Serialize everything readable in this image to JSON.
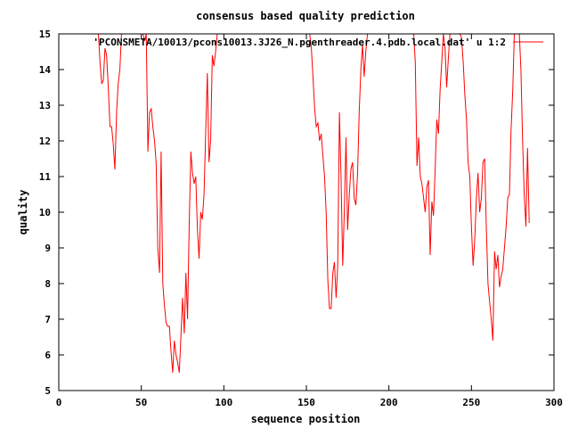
{
  "chart_data": {
    "type": "line",
    "title": "consensus based quality prediction",
    "xlabel": "sequence position",
    "ylabel": "quality",
    "xlim": [
      0,
      300
    ],
    "ylim": [
      5,
      15
    ],
    "xticks": [
      0,
      50,
      100,
      150,
      200,
      250,
      300
    ],
    "yticks": [
      5,
      6,
      7,
      8,
      9,
      10,
      11,
      12,
      13,
      14,
      15
    ],
    "grid": false,
    "legend_position": "top-right",
    "colors": {
      "series": "#ff0000",
      "axes": "#000000",
      "background": "#ffffff"
    },
    "series": [
      {
        "name": "'PCONSMETA/10013/pcons10013.3J26_N.pgenthreader.4.pdb.local.dat' u 1:2",
        "x": [
          24,
          25,
          26,
          27,
          28,
          29,
          30,
          31,
          32,
          33,
          34,
          35,
          36,
          37,
          38,
          39,
          40,
          41,
          42,
          43,
          44,
          45,
          46,
          47,
          48,
          49,
          50,
          51,
          52,
          53,
          54,
          55,
          56,
          57,
          58,
          59,
          60,
          61,
          62,
          63,
          64,
          65,
          66,
          67,
          68,
          69,
          70,
          71,
          72,
          73,
          74,
          75,
          76,
          77,
          78,
          79,
          80,
          81,
          82,
          83,
          84,
          85,
          86,
          87,
          88,
          89,
          90,
          91,
          92,
          93,
          94,
          95,
          96,
          97,
          98,
          99,
          100,
          101,
          102,
          103,
          104,
          105,
          106,
          107,
          108,
          109,
          110,
          111,
          112,
          113,
          114,
          115,
          116,
          117,
          118,
          119,
          120,
          121,
          122,
          123,
          124,
          125,
          126,
          127,
          128,
          129,
          130,
          131,
          132,
          133,
          134,
          135,
          136,
          137,
          138,
          139,
          140,
          141,
          142,
          143,
          144,
          145,
          146,
          147,
          148,
          149,
          150,
          151,
          152,
          153,
          154,
          155,
          156,
          157,
          158,
          159,
          160,
          161,
          162,
          163,
          164,
          165,
          166,
          167,
          168,
          169,
          170,
          171,
          172,
          173,
          174,
          175,
          176,
          177,
          178,
          179,
          180,
          181,
          182,
          183,
          184,
          185,
          186,
          187,
          188,
          189,
          190,
          191,
          192,
          193,
          194,
          195,
          196,
          197,
          198,
          199,
          200,
          201,
          202,
          203,
          204,
          205,
          206,
          207,
          208,
          209,
          210,
          211,
          212,
          213,
          214,
          215,
          216,
          217,
          218,
          219,
          220,
          221,
          222,
          223,
          224,
          225,
          226,
          227,
          228,
          229,
          230,
          231,
          232,
          233,
          234,
          235,
          236,
          237,
          238,
          239,
          240,
          241,
          242,
          243,
          244,
          245,
          246,
          247,
          248,
          249,
          250,
          251,
          252,
          253,
          254,
          255,
          256,
          257,
          258,
          259,
          260,
          261,
          262,
          263,
          264,
          265,
          266,
          267,
          268,
          269,
          270,
          271,
          272,
          273,
          274,
          275,
          276,
          277,
          278,
          279,
          280,
          281,
          282,
          283,
          284,
          285
        ],
        "y": [
          15.0,
          14.2,
          13.6,
          13.7,
          14.6,
          14.4,
          13.5,
          12.4,
          12.4,
          11.9,
          11.2,
          12.8,
          13.6,
          14.0,
          15.0,
          15.0,
          15.0,
          15.0,
          15.0,
          15.0,
          15.0,
          15.0,
          15.0,
          15.0,
          15.0,
          15.0,
          15.0,
          15.0,
          14.8,
          15.0,
          11.7,
          12.8,
          12.9,
          12.4,
          12.0,
          11.4,
          9.0,
          8.3,
          11.7,
          8.0,
          7.4,
          6.9,
          6.8,
          6.8,
          6.1,
          5.5,
          6.4,
          6.0,
          5.8,
          5.5,
          6.5,
          7.6,
          6.6,
          8.3,
          7.0,
          9.6,
          11.7,
          11.1,
          10.8,
          11.0,
          9.5,
          8.7,
          10.0,
          9.8,
          10.5,
          12.2,
          13.9,
          11.4,
          12.0,
          14.4,
          14.1,
          14.5,
          15.0,
          15.0,
          15.0,
          15.0,
          15.0,
          15.0,
          15.0,
          15.0,
          15.0,
          15.0,
          15.0,
          15.0,
          15.0,
          15.0,
          15.0,
          15.0,
          15.0,
          15.0,
          15.0,
          15.0,
          15.0,
          15.0,
          15.0,
          15.0,
          15.0,
          15.0,
          15.0,
          15.0,
          15.0,
          15.0,
          15.0,
          15.0,
          15.0,
          15.0,
          15.0,
          15.0,
          15.0,
          15.0,
          15.0,
          15.0,
          15.0,
          15.0,
          15.0,
          15.0,
          15.0,
          15.0,
          15.0,
          15.0,
          15.0,
          15.0,
          15.0,
          15.0,
          15.0,
          15.0,
          15.0,
          15.0,
          15.0,
          14.6,
          13.8,
          12.9,
          12.4,
          12.5,
          12.0,
          12.2,
          11.6,
          11.0,
          10.0,
          8.1,
          7.3,
          7.3,
          8.3,
          8.6,
          7.6,
          8.5,
          12.8,
          11.0,
          8.5,
          10.0,
          12.1,
          9.5,
          10.5,
          11.2,
          11.4,
          10.4,
          10.2,
          11.1,
          12.8,
          14.0,
          14.7,
          13.8,
          14.5,
          15.0,
          15.0,
          15.0,
          15.0,
          15.0,
          15.0,
          15.0,
          15.0,
          15.0,
          15.0,
          15.0,
          15.0,
          15.0,
          15.0,
          15.0,
          15.0,
          15.0,
          15.0,
          15.0,
          15.0,
          15.0,
          15.0,
          15.0,
          15.0,
          15.0,
          15.0,
          15.0,
          15.0,
          15.0,
          14.2,
          11.3,
          12.1,
          11.0,
          10.8,
          10.4,
          10.0,
          10.7,
          10.9,
          8.8,
          10.3,
          9.9,
          11.2,
          12.6,
          12.2,
          13.4,
          14.2,
          15.0,
          14.6,
          13.5,
          14.3,
          15.0,
          15.0,
          15.0,
          15.0,
          15.0,
          15.0,
          15.0,
          14.9,
          14.2,
          13.3,
          12.6,
          11.4,
          11.0,
          9.6,
          8.5,
          9.2,
          10.4,
          11.1,
          10.0,
          10.4,
          11.4,
          11.5,
          9.6,
          8.0,
          7.5,
          7.0,
          6.4,
          8.9,
          8.4,
          8.8,
          7.9,
          8.2,
          8.4,
          9.0,
          9.6,
          10.4,
          10.5,
          12.3,
          13.4,
          15.0,
          15.0,
          15.0,
          15.0,
          14.0,
          12.0,
          10.5,
          9.6,
          11.8,
          9.7
        ]
      }
    ]
  }
}
